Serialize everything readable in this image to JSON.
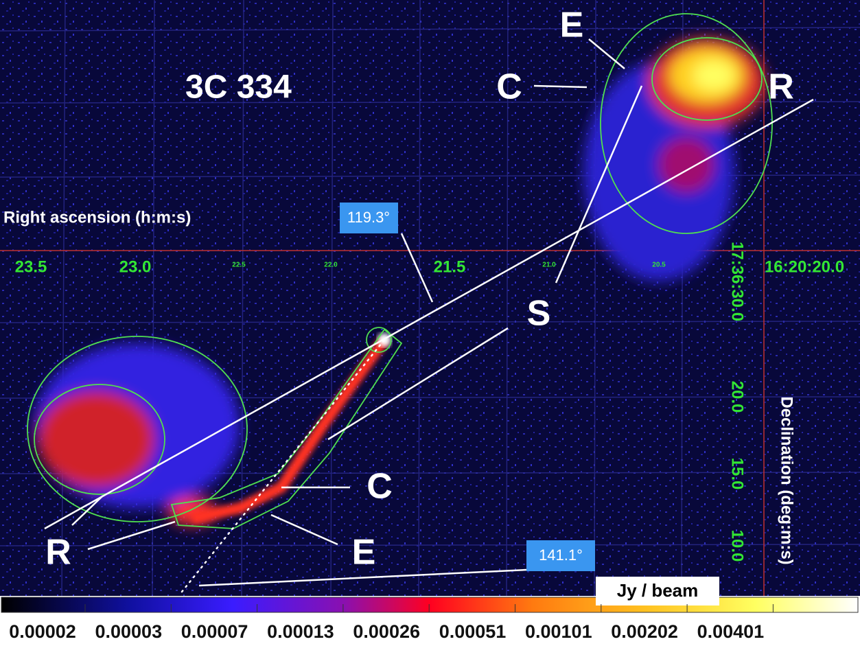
{
  "title": "3C 334",
  "axes": {
    "x_label": "Right ascension (h:m:s)",
    "y_label": "Declination (deg:m:s)",
    "ra_ticks": [
      "23.5",
      "23.0",
      "22.5",
      "22.0",
      "21.5",
      "21.0",
      "20.5",
      "16:20:20.0"
    ],
    "dec_ticks": [
      "17:36:30.0",
      "20.0",
      "15.0",
      "10.0"
    ]
  },
  "annotations": [
    "E",
    "C",
    "R",
    "S",
    "C",
    "E",
    "R"
  ],
  "angles": [
    "119.3°",
    "141.1°"
  ],
  "colorbar": {
    "label": "Jy / beam",
    "ticks": [
      "0.00002",
      "0.00003",
      "0.00007",
      "0.00013",
      "0.00026",
      "0.00051",
      "0.00101",
      "0.00202",
      "0.00401"
    ]
  }
}
